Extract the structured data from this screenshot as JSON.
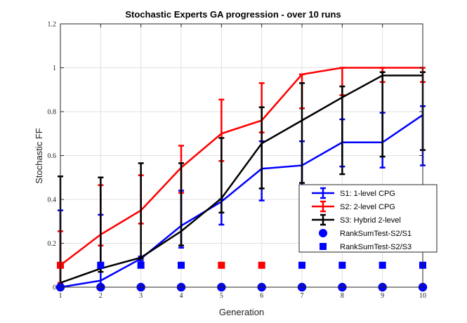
{
  "chart_data": {
    "type": "line",
    "title": "Stochastic Experts GA progression - over 10 runs",
    "xlabel": "Generation",
    "ylabel": "Stochastic FF",
    "xlim": [
      1,
      10
    ],
    "ylim": [
      0,
      1.2
    ],
    "x_ticks": [
      "1",
      "2",
      "3",
      "4",
      "5",
      "6",
      "7",
      "8",
      "9",
      "10"
    ],
    "y_ticks": [
      "0",
      "0.2",
      "0.4",
      "0.6",
      "0.8",
      "1",
      "1.2"
    ],
    "grid": true,
    "legend_position": "lower-right",
    "x": [
      1,
      2,
      3,
      4,
      5,
      6,
      7,
      8,
      9,
      10
    ],
    "series": [
      {
        "name": "S1: 1-level CPG",
        "color": "#0000ff",
        "kind": "errorbar",
        "values": [
          0.0,
          0.03,
          0.13,
          0.28,
          0.39,
          0.54,
          0.555,
          0.66,
          0.66,
          0.785
        ],
        "lower": [
          0.0,
          0.0,
          0.12,
          0.18,
          0.285,
          0.395,
          0.45,
          0.55,
          0.545,
          0.555
        ],
        "upper": [
          0.35,
          0.33,
          0.14,
          0.44,
          0.4,
          0.665,
          0.665,
          0.765,
          0.795,
          0.825
        ]
      },
      {
        "name": "S2: 2-level CPG",
        "color": "#ff0000",
        "kind": "errorbar",
        "values": [
          0.1,
          0.24,
          0.35,
          0.545,
          0.7,
          0.76,
          0.97,
          1.0,
          1.0,
          1.0
        ],
        "lower": [
          0.02,
          0.19,
          0.29,
          0.43,
          0.575,
          0.705,
          0.815,
          0.875,
          0.935,
          0.935
        ],
        "upper": [
          0.255,
          0.465,
          0.51,
          0.645,
          0.855,
          0.93,
          0.97,
          1.0,
          1.0,
          1.0
        ]
      },
      {
        "name": "S3: Hybrid 2-level",
        "color": "#000000",
        "kind": "errorbar",
        "values": [
          0.02,
          0.085,
          0.135,
          0.255,
          0.405,
          0.655,
          0.76,
          0.865,
          0.965,
          0.965
        ],
        "lower": [
          0.0,
          0.07,
          0.13,
          0.19,
          0.34,
          0.45,
          0.475,
          0.515,
          0.595,
          0.625
        ],
        "upper": [
          0.505,
          0.5,
          0.565,
          0.565,
          0.68,
          0.82,
          0.93,
          0.915,
          0.98,
          0.98
        ]
      },
      {
        "name": "RankSumTest-S2/S1",
        "color": "#0000ff",
        "kind": "marker-circle",
        "values": [
          0,
          0,
          0,
          0,
          0,
          0,
          0,
          0,
          0,
          0
        ]
      },
      {
        "name": "RankSumTest-S2/S3",
        "kind": "marker-square",
        "colors": [
          "#ff0000",
          "#0000ff",
          "#0000ff",
          "#0000ff",
          "#ff0000",
          "#ff0000",
          "#0000ff",
          "#0000ff",
          "#0000ff",
          "#0000ff"
        ],
        "color": "#0000ff",
        "values": [
          0.1,
          0.1,
          0.1,
          0.1,
          0.1,
          0.1,
          0.1,
          0.1,
          0.1,
          0.1
        ]
      }
    ]
  }
}
